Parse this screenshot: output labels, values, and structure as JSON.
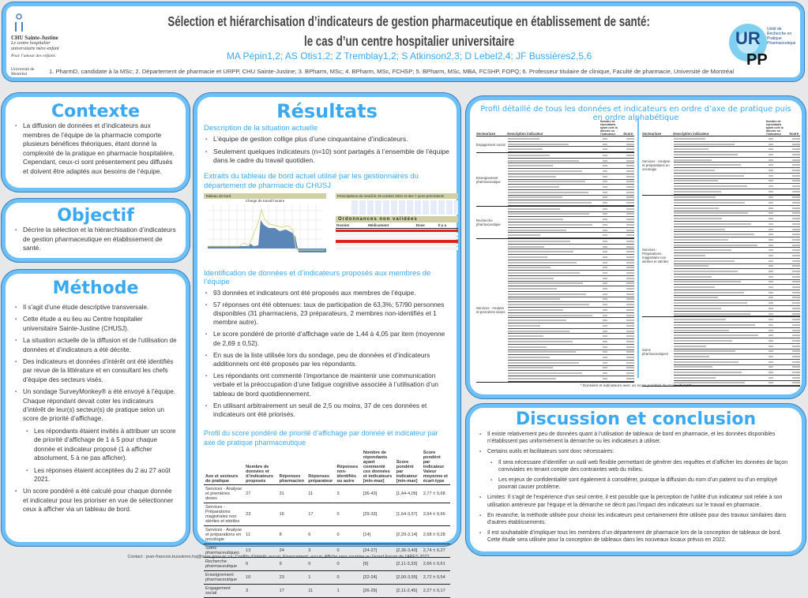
{
  "header": {
    "title_line1": "Sélection et hiérarchisation d’indicateurs de gestion pharmaceutique en établissement de santé:",
    "title_line2": "le cas d’un centre hospitalier universitaire",
    "authors": "MA Pépin1,2; AS Otis1,2; Z Tremblay1,2; S Atkinson2,3; D Lebel2,4; JF Bussières2,5,6",
    "affiliations": "1. PharmD, candidate à la MSc; 2. Département de pharmacie et URPP, CHU Sainte-Justine; 3. BPharm, MSc; 4. BPharm, MSc, FCHSP; 5. BPharm, MSc, MBA, FCSHP, FOPQ; 6. Professeur titulaire de clinique, Faculté de pharmacie, Université de Montréal",
    "logo_chu": "CHU Sainte-Justine",
    "logo_chu_sub": "Le centre hospitalier universitaire mère-enfant",
    "logo_chu_tag": "Pour l’amour des enfants",
    "logo_udem": "Université de Montréal",
    "logo_urpp": "URPP",
    "logo_urpp_sub": "Unité de Recherche en Pratique Pharmaceutique"
  },
  "contexte": {
    "title": "Contexte",
    "items": [
      "La diffusion de données et d’indicateurs aux membres de l’équipe de la pharmacie comporte plusieurs bénéfices théoriques, étant donné la complexité de la pratique en pharmacie hospitalière. Cependant, ceux-ci sont présentement peu diffusés et doivent être adaptés aux besoins de l’équipe."
    ]
  },
  "objectif": {
    "title": "Objectif",
    "items": [
      "Décrire la sélection et la hiérarchisation d’indicateurs de gestion pharmaceutique en établissement de santé."
    ]
  },
  "methode": {
    "title": "Méthode",
    "items": [
      "Il s’agit d’une étude descriptive transversale.",
      "Cette étude a eu lieu au Centre hospitalier universitaire Sainte-Justine (CHUSJ).",
      "La situation actuelle de la diffusion et de l’utilisation de données et d’indicateurs a été décrite.",
      "Des indicateurs et données d’intérêt ont été identifiés par revue de la littérature et en consultant les chefs d’équipe des secteurs visés.",
      "Un sondage SurveyMonkey® a été envoyé à l’équipe. Chaque répondant devait coter les indicateurs d’intérêt de leur(s) secteur(s) de pratique selon un score de priorité d’affichage.",
      "Les répondants étaient invités à attribuer un score de priorité d’affichage de 1 à 5 pour chaque donnée et indicateur proposé (1 à afficher absolument, 5 à ne pas afficher).",
      "Les réponses étaient acceptées du 2 au 27 août 2021.",
      "Un score pondéré a été calculé pour chaque donnée et indicateur pour les prioriser en vue de sélectionner ceux à afficher via un tableau de bord."
    ]
  },
  "resultats": {
    "title": "Résultats",
    "s1_title": "Description de la situation actuelle",
    "s1_items": [
      "L’équipe de gestion collige plus d’une cinquantaine d’indicateurs.",
      "Seulement quelques indicateurs (n=10) sont partagés à l’ensemble de l’équipe dans le cadre du travail quotidien."
    ],
    "s2_title": "Extraits du tableau de bord actuel utilisé par les gestionnaires du département de pharmacie du CHUSJ",
    "dash": {
      "panel1": "Tableau de bord",
      "chart_title": "Charge de travail horaire",
      "panel2": "Prescriptions du mardi le 19 octobre 2021 et des 7 jours précédents",
      "panel3": "Ordonnances non validées",
      "cols": [
        "Dossier",
        "Médicament",
        "Dose",
        "Il y a"
      ]
    },
    "s3_title": "Identification de données et d’indicateurs proposés aux membres de l’équipe",
    "s3_items": [
      "93 données et indicateurs ont été proposés aux membres de l’équipe.",
      "57 réponses ont été obtenues: taux de participation de 63,3%; 57/90 personnes disponibles (31 pharmaciens, 23 préparateurs, 2 membres non-identifiés et 1 membre autre).",
      "Le score pondéré de priorité d’affichage varie de 1,44 à 4,05 par item (moyenne de 2,69 ± 0,52).",
      "En sus de la liste utilisée lors du sondage, peu de données et d’indicateurs additionnels ont été proposés par les répondants.",
      "Les répondants ont commenté l’importance de maintenir une communication verbale et la préoccupation d’une fatigue cognitive associée à l’utilisation d’un tableau de bord quotidiennement.",
      "En utilisant arbitrairement un seuil de 2,5 ou moins, 37 de ces données et indicateurs ont été priorisés."
    ],
    "s4_title": "Profil du score pondéré de priorité d’affichage par donnée et indicateur par axe de pratique pharmaceutique",
    "table": {
      "headers": [
        "Axe et secteurs de pratique",
        "Nombre de données et d’indicateurs proposés",
        "Réponses pharmacien",
        "Réponses préparateur",
        "Réponses non-identifiés ou autre",
        "Nombre de répondants ayant commenté ces données et indicateurs [min-max]",
        "Score pondéré par indicateur [min-max]",
        "Score pondéré par indicateur Valeur moyenne et écart-type"
      ],
      "rows": [
        [
          "Services - Analyse et premières doses",
          "27",
          "31",
          "11",
          "3",
          "[36-43]",
          "[1,44-4,05]",
          "2,77 ± 0,68"
        ],
        [
          "Services - Préparations magistrales non stériles et stériles",
          "23",
          "16",
          "17",
          "0",
          "[29-33]",
          "[1,64-3,57]",
          "2,64 ± 0,66"
        ],
        [
          "Services - Analyse et préparations en oncologie",
          "11",
          "8",
          "6",
          "0",
          "[14]",
          "[2,29-3,14]",
          "2,68 ± 0,28"
        ],
        [
          "Soins pharmaceutiques",
          "13",
          "24",
          "3",
          "0",
          "[24-27]",
          "[2,36-3,40]",
          "2,74 ± 0,27"
        ],
        [
          "Recherche pharmaceutique",
          "6",
          "9",
          "0",
          "0",
          "[9]",
          "[2,11-3,33]",
          "2,66 ± 0,61"
        ],
        [
          "Enseignement pharmaceutique",
          "10",
          "23",
          "1",
          "0",
          "[22-24]",
          "[2,00-3,55]",
          "2,72 ± 0,54"
        ],
        [
          "Engagement social",
          "3",
          "17",
          "11",
          "1",
          "[26-29]",
          "[2,11-2,45]",
          "2,27 ± 0,17"
        ]
      ]
    }
  },
  "profil": {
    "title": "Profil détaillé de tous les données et indicateurs en ordre d’axe de pratique puis en ordre alphabétique",
    "headers": [
      "Secteur/axe",
      "Description indicateur",
      "Nombre de répondants ayant coté la donnée ou l’indicateur",
      "Score"
    ],
    "left_sections": [
      {
        "label": "Engagement social",
        "rows": 3
      },
      {
        "label": "Enseignement pharmaceutique",
        "rows": 10
      },
      {
        "label": "Recherche pharmaceutique",
        "rows": 6
      },
      {
        "label": "Services - Analyse et premières doses",
        "rows": 27
      }
    ],
    "right_sections": [
      {
        "label": "Services - Analyse et préparations en oncologie",
        "rows": 11
      },
      {
        "label": "Services - Préparations magistrales non stériles et stériles",
        "rows": 23
      },
      {
        "label": "Soins pharmaceutiques",
        "rows": 13
      }
    ],
    "footnote": "* Données et indicateurs avec un score pondéré de moins de 2,50"
  },
  "discussion": {
    "title": "Discussion et conclusion",
    "items": [
      {
        "t": "Il existe relativement peu de données quant à l’utilisation de tableaux de bord en pharmacie, et les données disponibles n’établissent pas uniformément la démarche ou les indicateurs à utiliser.",
        "sub": false
      },
      {
        "t": "Certains outils et facilitateurs sont donc nécessaires:",
        "sub": false
      },
      {
        "t": "Il sera nécessaire d’identifier un outil web flexible permettant de générer des requêtes et d’afficher les données de façon conviviales en tenant compte des contraintes web du milieu.",
        "sub": true
      },
      {
        "t": "Les enjeux de confidentialité sont également à considérer, puisque la diffusion du nom d’un patient ou d’un employé pourrait causer problème.",
        "sub": true
      },
      {
        "t": "Limites: Il s’agit de l’expérience d’un seul centre, il est possible que la perception de l’utilité d’un indicateur soit reliée à son utilisation antérieure par l’équipe et la démarche ne décrit pas l’impact des indicateurs sur le travail en pharmacie.",
        "sub": false
      },
      {
        "t": "En revanche, la méthode utilisée pour choisir les indicateurs peut certainement être utilisée pour des travaux similaires dans d’autres établissements.",
        "sub": false
      },
      {
        "t": "Il est souhaitable d’impliquer tous les membres d’un département de pharmacie lors de la conception de tableaux de bord. Cette étude sera utilisée pour la conception de tableaux dans les nouveaux locaux prévus en 2022.",
        "sub": false
      }
    ]
  },
  "footer": "Contact : jean-francois.bussieres.hsj@ssss.gouv.qc.ca; Conflits d’intérêt: aucun; Financement: aucun; Affiche sera soumise au Grand Forum de l’APES 2022",
  "colors": {
    "accent": "#3aa9f2",
    "border": "#6cc0f7"
  }
}
